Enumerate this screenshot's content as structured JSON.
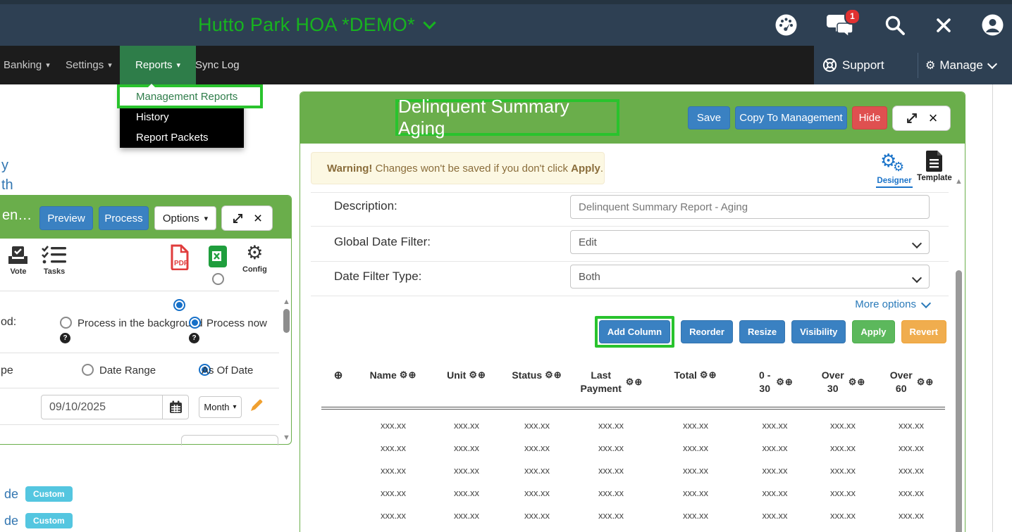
{
  "glyphs": {
    "gear": "⚙",
    "circle_plus": "⊕",
    "caret_down": "▾",
    "close": "×",
    "up_arrow": "▲",
    "down_arrow": "▼"
  },
  "colors": {
    "navy": "#2e4053",
    "green_header": "#6aae4b",
    "highlight_green": "#29c32d",
    "nav_active_green": "#2e7d49",
    "title_green": "#17b31f",
    "blue_button": "#3a81c2",
    "red_button": "#df5050",
    "apply_green": "#5cb85c",
    "revert_orange": "#f0ad4e",
    "badge_blue": "#54c6e0",
    "warning_bg": "#fcf8e3",
    "warning_text": "#8a6d3b"
  },
  "titlebar": {
    "title": "Hutto Park HOA *DEMO*",
    "chat_badge": "1"
  },
  "menubar": {
    "banking": "Banking",
    "settings": "Settings",
    "reports": "Reports",
    "sync_log": "Sync Log",
    "support": "Support",
    "manage": "Manage"
  },
  "reports_menu": {
    "item1": "Management Reports",
    "item2": "History",
    "item3": "Report Packets"
  },
  "left_panel": {
    "title": "en…",
    "preview": "Preview",
    "process": "Process",
    "options": "Options",
    "vote": "Vote",
    "tasks": "Tasks",
    "pdf_label": "PDF",
    "config": "Config",
    "method_label": "od:",
    "radio_background": "Process in the background",
    "radio_now": "Process now",
    "help_glyph": "?",
    "type_label": "pe",
    "radio_range": "Date Range",
    "radio_asof": "As Of Date",
    "date_value": "09/10/2025",
    "month": "Month"
  },
  "fragments": {
    "f1": "y",
    "f2": "th"
  },
  "custom": [
    {
      "text": "de",
      "badge": "Custom"
    },
    {
      "text": "de",
      "badge": "Custom"
    }
  ],
  "report": {
    "title": "Delinquent Summary Aging",
    "save": "Save",
    "copy": "Copy To Management",
    "hide": "Hide",
    "warning_bold": "Warning!",
    "warning_body": " Changes won't be saved if you don't click ",
    "warning_apply": "Apply",
    "warning_end": ".",
    "designer": "Designer",
    "template": "Template",
    "desc_label": "Description:",
    "desc_value": "Delinquent Summary Report - Aging",
    "gdf_label": "Global Date Filter:",
    "gdf_value": "Edit",
    "dft_label": "Date Filter Type:",
    "dft_value": "Both",
    "more_options": "More options",
    "btn_add": "Add Column",
    "btn_reorder": "Reorder",
    "btn_resize": "Resize",
    "btn_visibility": "Visibility",
    "btn_apply": "Apply",
    "btn_revert": "Revert"
  },
  "table": {
    "columns": [
      "Name",
      "Unit",
      "Status",
      "Last Payment",
      "Total",
      "0 - 30",
      "Over 30",
      "Over 60"
    ],
    "header_icons": "⚙⊕",
    "plus_glyph": "⊕",
    "cell_placeholder": "xxx.xx",
    "data_row_count": 5,
    "total_row_from_column": "Total"
  }
}
